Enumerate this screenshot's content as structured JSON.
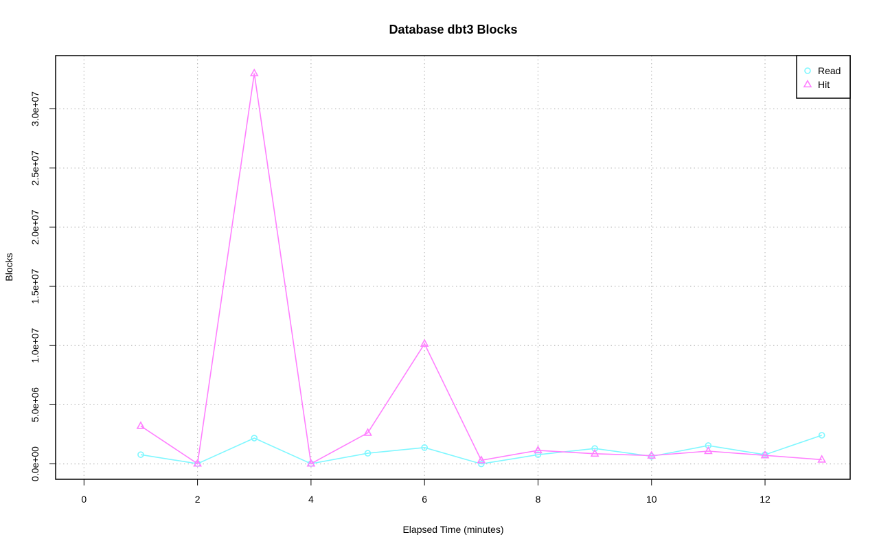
{
  "chart_data": {
    "type": "line",
    "title": "Database dbt3 Blocks",
    "xlabel": "Elapsed Time (minutes)",
    "ylabel": "Blocks",
    "xlim": [
      -0.5,
      13.5
    ],
    "ylim": [
      -1300000,
      34500000
    ],
    "x_ticks": [
      0,
      2,
      4,
      6,
      8,
      10,
      12
    ],
    "x_tick_labels": [
      "0",
      "2",
      "4",
      "6",
      "8",
      "10",
      "12"
    ],
    "y_ticks": [
      0,
      5000000,
      10000000,
      15000000,
      20000000,
      25000000,
      30000000
    ],
    "y_tick_labels": [
      "0.0e+00",
      "5.0e+06",
      "1.0e+07",
      "1.5e+07",
      "2.0e+07",
      "2.5e+07",
      "3.0e+07"
    ],
    "grid": true,
    "legend_position": "top-right",
    "x": [
      1,
      2,
      3,
      4,
      5,
      6,
      7,
      8,
      9,
      10,
      11,
      12,
      13
    ],
    "series": [
      {
        "name": "Read",
        "color": "#7ff7ff",
        "marker": "circle",
        "values": [
          780000,
          20000,
          2180000,
          20000,
          900000,
          1380000,
          0,
          780000,
          1300000,
          640000,
          1550000,
          780000,
          2420000
        ]
      },
      {
        "name": "Hit",
        "color": "#ff7fff",
        "marker": "triangle",
        "values": [
          3200000,
          20000,
          33000000,
          20000,
          2620000,
          10150000,
          300000,
          1140000,
          860000,
          700000,
          1080000,
          720000,
          360000
        ]
      }
    ]
  }
}
